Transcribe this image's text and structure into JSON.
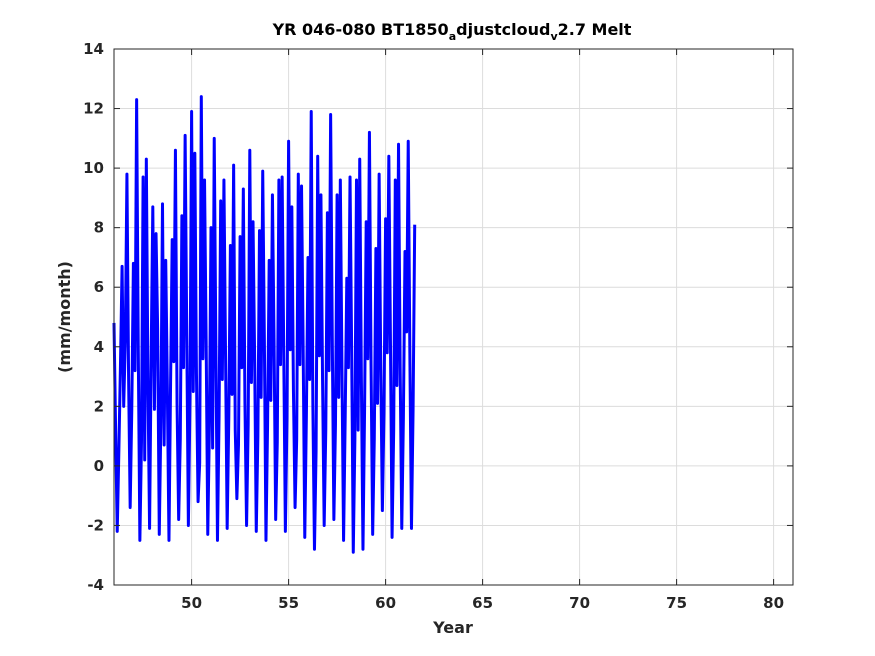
{
  "chart_data": {
    "type": "line",
    "title": {
      "prefix": "YR 046-080 BT1850",
      "sub1": "a",
      "mid": "djustcloud",
      "sub2": "v",
      "suffix": "2.7 Melt"
    },
    "xlabel": "Year",
    "ylabel": "(mm/month)",
    "xlim": [
      46,
      81
    ],
    "ylim": [
      -4,
      14
    ],
    "xticks": [
      "50",
      "55",
      "60",
      "65",
      "70",
      "75",
      "80"
    ],
    "yticks": [
      "-4",
      "-2",
      "0",
      "2",
      "4",
      "6",
      "8",
      "10",
      "12",
      "14"
    ],
    "grid": true,
    "series_color": "#0000ff",
    "series": [
      {
        "x_start": 46.0,
        "x_step": 0.083333,
        "values": [
          4.8,
          1.2,
          -2.2,
          0.5,
          3.4,
          6.7,
          2.0,
          4.2,
          9.8,
          3.1,
          -1.4,
          1.9,
          6.8,
          3.2,
          12.3,
          4.0,
          -2.5,
          0.8,
          9.7,
          0.2,
          10.3,
          2.8,
          -2.1,
          3.7,
          8.7,
          1.9,
          7.8,
          4.6,
          -2.3,
          1.5,
          8.8,
          0.7,
          6.9,
          2.6,
          -2.5,
          2.8,
          7.6,
          3.5,
          10.6,
          2.1,
          -1.8,
          0.9,
          8.4,
          3.3,
          11.1,
          4.4,
          -2.0,
          2.2,
          11.9,
          2.5,
          10.5,
          3.1,
          -1.2,
          0.1,
          12.4,
          3.6,
          9.6,
          4.2,
          -2.3,
          1.3,
          8.0,
          0.6,
          11.0,
          4.1,
          -2.5,
          1.7,
          8.9,
          2.9,
          9.6,
          3.7,
          -2.1,
          1.6,
          7.4,
          2.4,
          10.1,
          1.2,
          -1.1,
          0.7,
          7.7,
          3.3,
          9.3,
          2.1,
          -2.0,
          1.4,
          10.6,
          2.8,
          8.2,
          3.6,
          -2.2,
          1.0,
          7.9,
          2.3,
          9.9,
          4.3,
          -2.5,
          1.4,
          6.9,
          2.2,
          9.1,
          4.2,
          -1.8,
          0.8,
          9.6,
          3.4,
          9.7,
          3.8,
          -2.2,
          1.6,
          10.9,
          3.9,
          8.7,
          2.5,
          -1.4,
          0.9,
          9.8,
          3.4,
          9.4,
          4.0,
          -2.4,
          1.7,
          7.0,
          2.9,
          11.9,
          2.1,
          -2.8,
          0.5,
          10.4,
          3.7,
          9.1,
          2.9,
          -2.0,
          1.2,
          8.5,
          3.2,
          11.8,
          4.4,
          -1.8,
          1.4,
          9.1,
          2.3,
          9.6,
          3.3,
          -2.5,
          1.6,
          6.3,
          3.3,
          9.7,
          3.9,
          -2.9,
          0.9,
          9.6,
          1.2,
          10.3,
          3.0,
          -2.8,
          1.9,
          8.2,
          3.6,
          11.2,
          3.4,
          -2.3,
          0.9,
          7.3,
          2.1,
          9.8,
          3.3,
          -1.5,
          1.8,
          8.3,
          3.8,
          10.4,
          4.2,
          -2.4,
          1.2,
          9.6,
          2.7,
          10.8,
          3.3,
          -2.1,
          1.6,
          7.2,
          4.5,
          10.9,
          3.8,
          -2.1,
          1.9,
          8.1
        ]
      }
    ]
  }
}
